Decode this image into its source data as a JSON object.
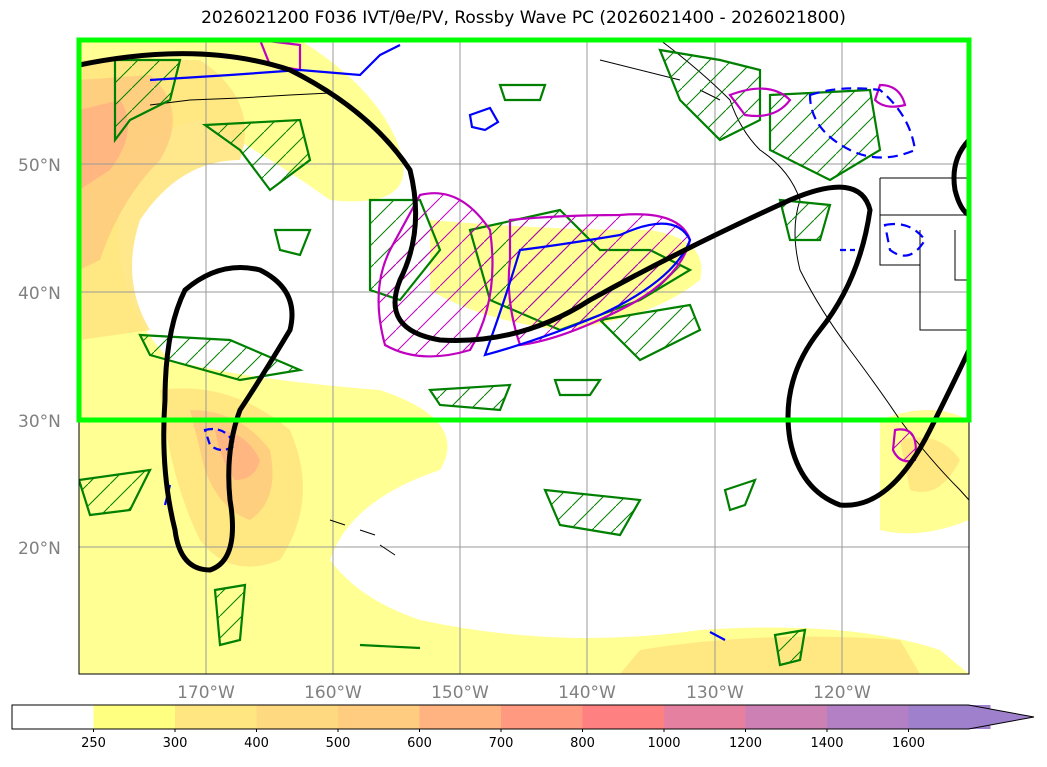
{
  "title": "2026021200 F036 IVT/θe/PV, Rossby Wave PC (2026021400 - 2026021800)",
  "map": {
    "lat_labels": [
      "50°N",
      "40°N",
      "30°N",
      "20°N"
    ],
    "lon_labels": [
      "170°W",
      "160°W",
      "150°W",
      "140°W",
      "130°W",
      "120°W"
    ],
    "extent": {
      "lon": [
        -180,
        -110
      ],
      "lat": [
        10,
        60
      ]
    },
    "highlight_box": {
      "lat": [
        30,
        60
      ],
      "color": "#00ff00"
    }
  },
  "colorbar": {
    "labels": [
      "250",
      "300",
      "400",
      "500",
      "600",
      "700",
      "800",
      "1000",
      "1200",
      "1400",
      "1600"
    ],
    "colors": [
      "#ffffff",
      "#ffff80",
      "#ffe680",
      "#ffd980",
      "#ffcc80",
      "#ffb380",
      "#ff9980",
      "#ff8080",
      "#e680a0",
      "#cc80b3",
      "#b380c6",
      "#9f80cc"
    ]
  },
  "contour_colors": {
    "rossby": "#000000",
    "theta_e": "#008000",
    "pv": "#c000c0",
    "ivt_line": "#0000ff"
  }
}
